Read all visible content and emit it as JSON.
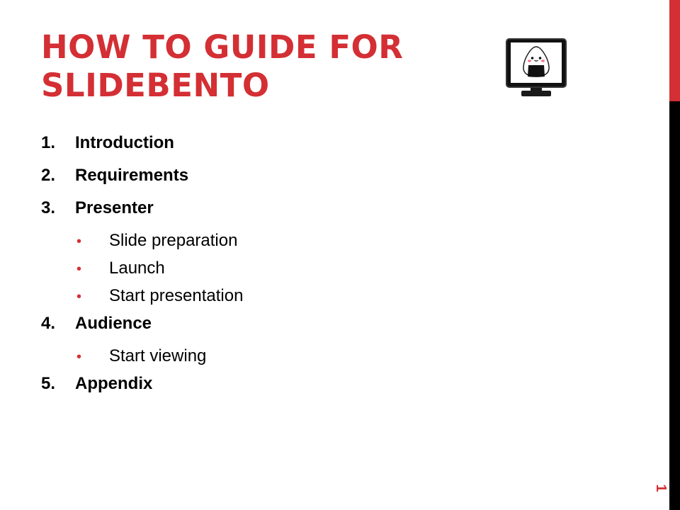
{
  "slide": {
    "title_line1": "HOW TO GUIDE FOR",
    "title_line2": "SLIDEBENTO",
    "slide_number": "1",
    "logo_icon": "monitor-onigiri-icon",
    "accent_color": "#d32f34"
  },
  "outline": [
    {
      "num": "1.",
      "label": "Introduction",
      "subitems": []
    },
    {
      "num": "2.",
      "label": "Requirements",
      "subitems": []
    },
    {
      "num": "3.",
      "label": "Presenter",
      "subitems": [
        "Slide preparation",
        "Launch",
        "Start presentation"
      ]
    },
    {
      "num": "4.",
      "label": "Audience",
      "subitems": [
        "Start viewing"
      ]
    },
    {
      "num": "5.",
      "label": "Appendix",
      "subitems": []
    }
  ]
}
